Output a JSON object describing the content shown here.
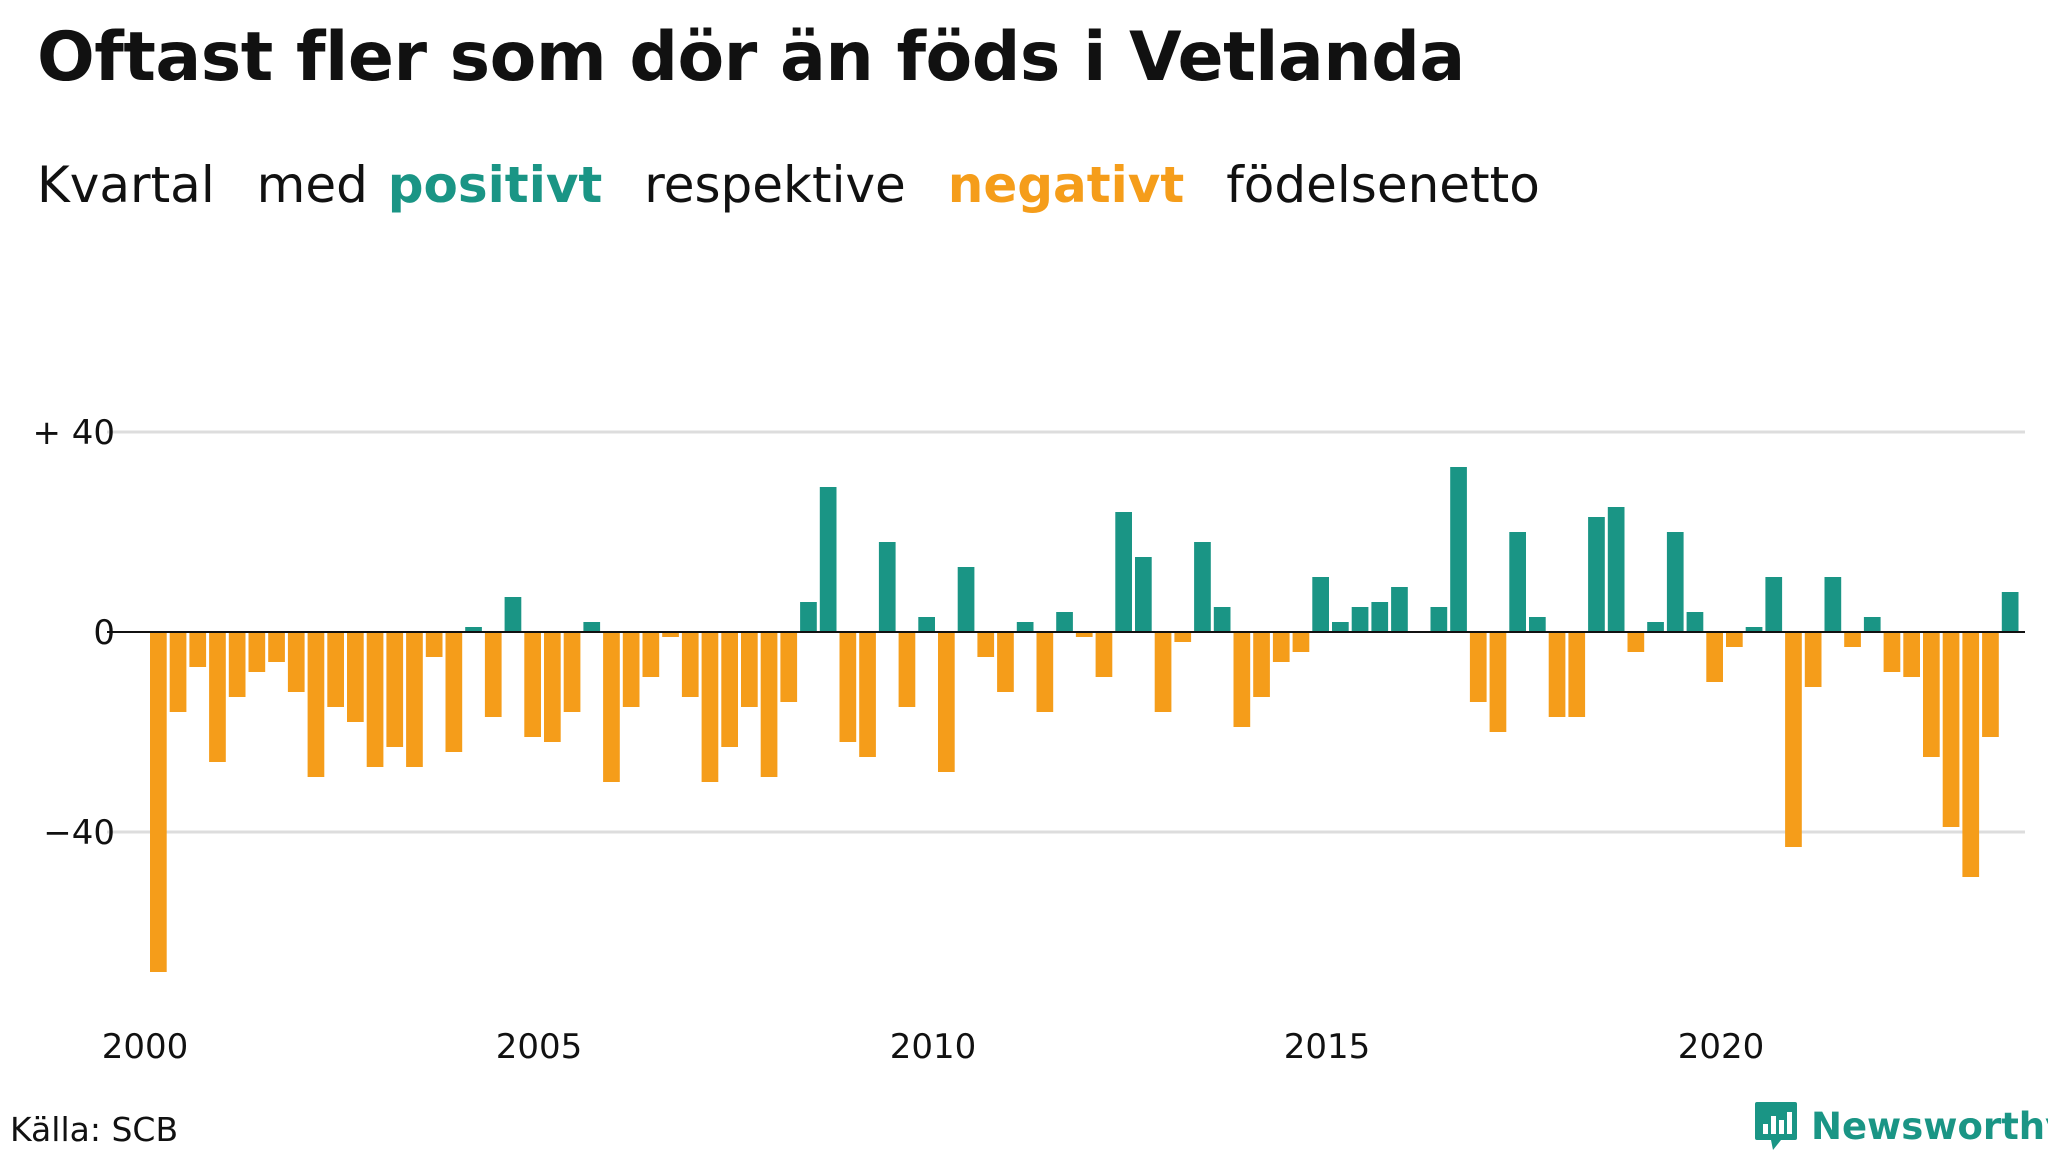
{
  "title": "Oftast fler som dör än föds i Vetlanda",
  "subtitle": {
    "part1": "Kvartal",
    "part2": "med",
    "positive_word": "positivt",
    "part3": "respektive",
    "negative_word": "negativt",
    "part4": "födelsenetto"
  },
  "colors": {
    "positive": "#1a9585",
    "negative": "#f59d1a",
    "grid": "#dddddd",
    "zero_line": "#111111"
  },
  "source": "Källa: SCB",
  "brand": {
    "name": "Newsworthy",
    "icon": "newsworthy-logo-icon"
  },
  "chart_data": {
    "type": "bar",
    "xlabel": "",
    "ylabel": "",
    "ylim": [
      -70,
      50
    ],
    "yticks": [
      {
        "value": 40,
        "label": "+ 40"
      },
      {
        "value": 0,
        "label": "0"
      },
      {
        "value": -40,
        "label": "−40"
      }
    ],
    "xticks": [
      {
        "value": 2000,
        "label": "2000"
      },
      {
        "value": 2005,
        "label": "2005"
      },
      {
        "value": 2010,
        "label": "2010"
      },
      {
        "value": 2015,
        "label": "2015"
      },
      {
        "value": 2020,
        "label": "2020"
      }
    ],
    "start_year": 2000,
    "values": [
      -68,
      -16,
      -7,
      -26,
      -13,
      -8,
      -6,
      -12,
      -29,
      -15,
      -18,
      -27,
      -23,
      -27,
      -5,
      -24,
      1,
      -17,
      7,
      -21,
      -22,
      -16,
      2,
      -30,
      -15,
      -9,
      -1,
      -13,
      -30,
      -23,
      -15,
      -29,
      -14,
      6,
      29,
      -22,
      -25,
      18,
      -15,
      3,
      -28,
      13,
      -5,
      -12,
      2,
      -16,
      4,
      -1,
      -9,
      24,
      15,
      -16,
      -2,
      18,
      5,
      -19,
      -13,
      -6,
      -4,
      11,
      2,
      5,
      6,
      9,
      0,
      5,
      33,
      -14,
      -20,
      20,
      3,
      -17,
      -17,
      23,
      25,
      -4,
      2,
      20,
      4,
      -10,
      -3,
      1,
      11,
      -43,
      -11,
      11,
      -3,
      3,
      -8,
      -9,
      -25,
      -39,
      -49,
      -21,
      8
    ]
  }
}
